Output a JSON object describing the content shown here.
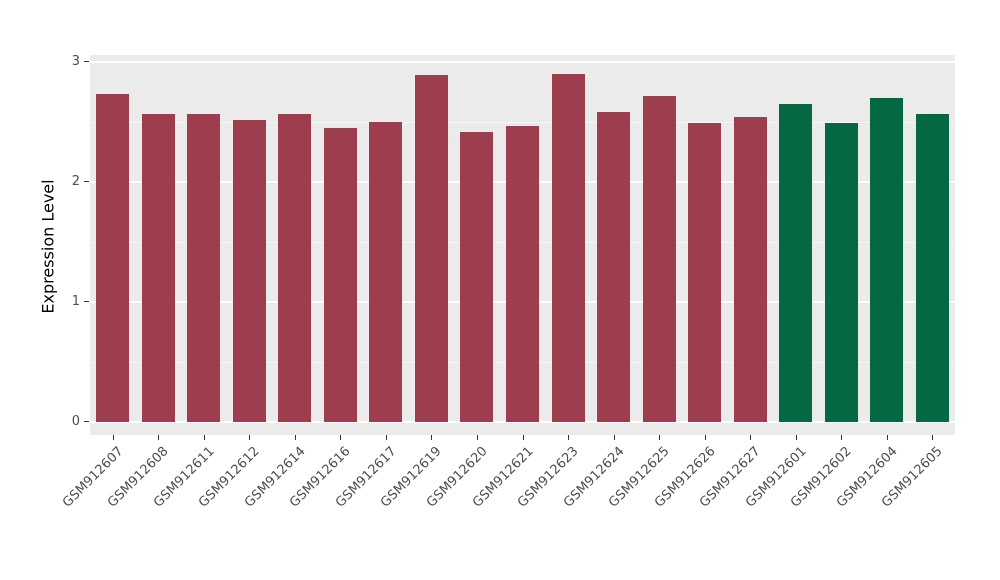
{
  "chart_data": {
    "type": "bar",
    "title": "",
    "xlabel": "",
    "ylabel": "Expression Level",
    "ylim": [
      0,
      3
    ],
    "yticks": [
      0,
      1,
      2,
      3
    ],
    "grid": "on",
    "legend": "none",
    "panel_background": "#ebebeb",
    "gridline_color": "#ffffff",
    "categories": [
      "GSM912607",
      "GSM912608",
      "GSM912611",
      "GSM912612",
      "GSM912614",
      "GSM912616",
      "GSM912617",
      "GSM912619",
      "GSM912620",
      "GSM912621",
      "GSM912623",
      "GSM912624",
      "GSM912625",
      "GSM912626",
      "GSM912627",
      "GSM912601",
      "GSM912602",
      "GSM912604",
      "GSM912605"
    ],
    "values": [
      2.73,
      2.57,
      2.57,
      2.52,
      2.57,
      2.45,
      2.5,
      2.89,
      2.42,
      2.47,
      2.9,
      2.58,
      2.72,
      2.49,
      2.54,
      2.65,
      2.49,
      2.7,
      2.57
    ],
    "bar_colors": [
      "#9e3d4e",
      "#9e3d4e",
      "#9e3d4e",
      "#9e3d4e",
      "#9e3d4e",
      "#9e3d4e",
      "#9e3d4e",
      "#9e3d4e",
      "#9e3d4e",
      "#9e3d4e",
      "#9e3d4e",
      "#9e3d4e",
      "#9e3d4e",
      "#9e3d4e",
      "#9e3d4e",
      "#046843",
      "#046843",
      "#046843",
      "#046843"
    ],
    "group_palette": {
      "maroon": "#9e3d4e",
      "green": "#046843"
    }
  }
}
